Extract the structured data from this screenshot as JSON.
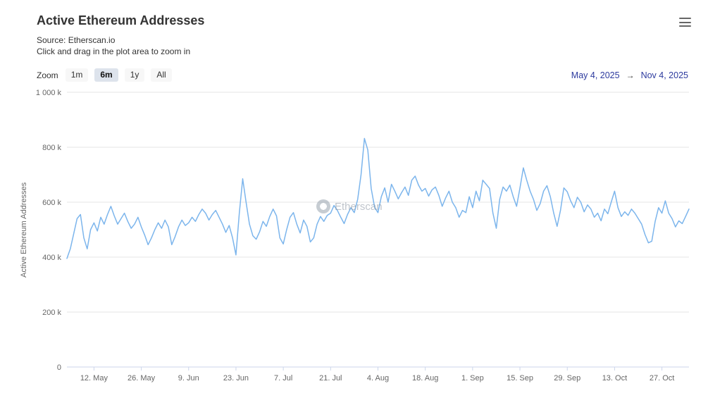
{
  "header": {
    "title": "Active Ethereum Addresses",
    "subtitle_source": "Source: Etherscan.io",
    "subtitle_hint": "Click and drag in the plot area to zoom in"
  },
  "zoom": {
    "label": "Zoom",
    "buttons": [
      {
        "label": "1m",
        "selected": false
      },
      {
        "label": "6m",
        "selected": true
      },
      {
        "label": "1y",
        "selected": false
      },
      {
        "label": "All",
        "selected": false
      }
    ]
  },
  "range": {
    "start": "May 4, 2025",
    "arrow": "→",
    "end": "Nov 4, 2025"
  },
  "watermark": {
    "text": "Etherscan",
    "icon": "etherscan-logo-icon"
  },
  "chart_data": {
    "type": "line",
    "title": "Active Ethereum Addresses",
    "xlabel": "",
    "ylabel": "Active Ethereum Addresses",
    "unit": "thousand addresses",
    "ylim": [
      0,
      1000
    ],
    "yticks": [
      0,
      200,
      400,
      600,
      800,
      1000
    ],
    "ytick_labels": [
      "0",
      "200 k",
      "400 k",
      "600 k",
      "800 k",
      "1 000 k"
    ],
    "xtick_labels": [
      "12. May",
      "26. May",
      "9. Jun",
      "23. Jun",
      "7. Jul",
      "21. Jul",
      "4. Aug",
      "18. Aug",
      "1. Sep",
      "15. Sep",
      "29. Sep",
      "13. Oct",
      "27. Oct"
    ],
    "xtick_positions": [
      8,
      22,
      36,
      50,
      64,
      78,
      92,
      106,
      120,
      134,
      148,
      162,
      176
    ],
    "x_range": {
      "start": "May 4, 2025",
      "end": "Nov 4, 2025",
      "interval": "daily"
    },
    "grid": true,
    "legend": false,
    "colors": {
      "grid": "#e6e6e6",
      "axis_line": "#ccd6eb",
      "axis_label": "#666666"
    },
    "series": [
      {
        "name": "Active Ethereum Addresses",
        "color": "#7cb5ec",
        "values": [
          395,
          430,
          485,
          540,
          555,
          470,
          430,
          500,
          525,
          495,
          545,
          520,
          555,
          585,
          550,
          520,
          540,
          560,
          530,
          505,
          520,
          545,
          510,
          480,
          445,
          470,
          500,
          525,
          505,
          535,
          510,
          445,
          475,
          510,
          535,
          515,
          525,
          545,
          530,
          555,
          575,
          560,
          535,
          555,
          570,
          545,
          520,
          490,
          515,
          470,
          408,
          560,
          685,
          600,
          520,
          478,
          465,
          492,
          530,
          512,
          548,
          575,
          550,
          470,
          448,
          500,
          545,
          562,
          520,
          488,
          535,
          512,
          455,
          470,
          520,
          548,
          530,
          552,
          560,
          588,
          570,
          545,
          522,
          555,
          580,
          562,
          610,
          700,
          832,
          790,
          650,
          582,
          562,
          620,
          652,
          600,
          665,
          640,
          612,
          635,
          655,
          625,
          680,
          695,
          662,
          640,
          650,
          622,
          645,
          655,
          625,
          585,
          615,
          640,
          600,
          580,
          545,
          570,
          562,
          620,
          580,
          640,
          605,
          680,
          665,
          650,
          560,
          505,
          610,
          655,
          640,
          662,
          620,
          585,
          652,
          725,
          680,
          640,
          610,
          570,
          595,
          640,
          660,
          620,
          560,
          512,
          570,
          652,
          638,
          605,
          580,
          618,
          600,
          565,
          590,
          575,
          545,
          560,
          532,
          575,
          558,
          600,
          640,
          580,
          548,
          565,
          552,
          575,
          560,
          540,
          520,
          482,
          452,
          458,
          530,
          580,
          560,
          605,
          560,
          540,
          510,
          532,
          522,
          548,
          575
        ]
      }
    ]
  }
}
